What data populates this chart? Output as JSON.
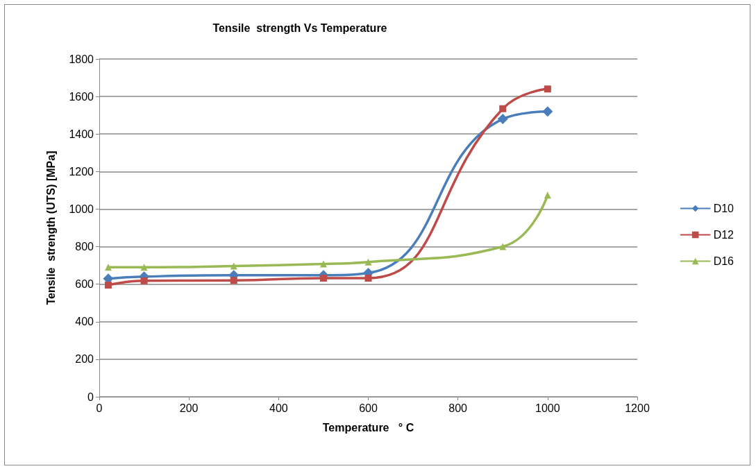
{
  "chart_data": {
    "type": "line",
    "title": "Tensile  strength Vs Temperature",
    "xlabel": "Temperature   ° C",
    "ylabel": "Tensile  strength (UTS) [MPa]",
    "x": [
      20,
      100,
      300,
      500,
      600,
      900,
      1000
    ],
    "series": [
      {
        "name": "D10",
        "color": "#4a7ebb",
        "marker": "diamond",
        "values": [
          629,
          640,
          648,
          648,
          660,
          1480,
          1520
        ]
      },
      {
        "name": "D12",
        "color": "#be4b48",
        "marker": "square",
        "values": [
          595,
          618,
          620,
          632,
          632,
          1535,
          1640
        ]
      },
      {
        "name": "D16",
        "color": "#98b954",
        "marker": "triangle",
        "values": [
          690,
          690,
          697,
          708,
          718,
          800,
          1075
        ]
      }
    ],
    "xlim": [
      0,
      1200
    ],
    "xticks": [
      0,
      200,
      400,
      600,
      800,
      1000,
      1200
    ],
    "ylim": [
      0,
      1800
    ],
    "yticks": [
      0,
      200,
      400,
      600,
      800,
      1000,
      1200,
      1400,
      1600,
      1800
    ],
    "grid": "y",
    "legend": "right",
    "line_style": "solid"
  }
}
